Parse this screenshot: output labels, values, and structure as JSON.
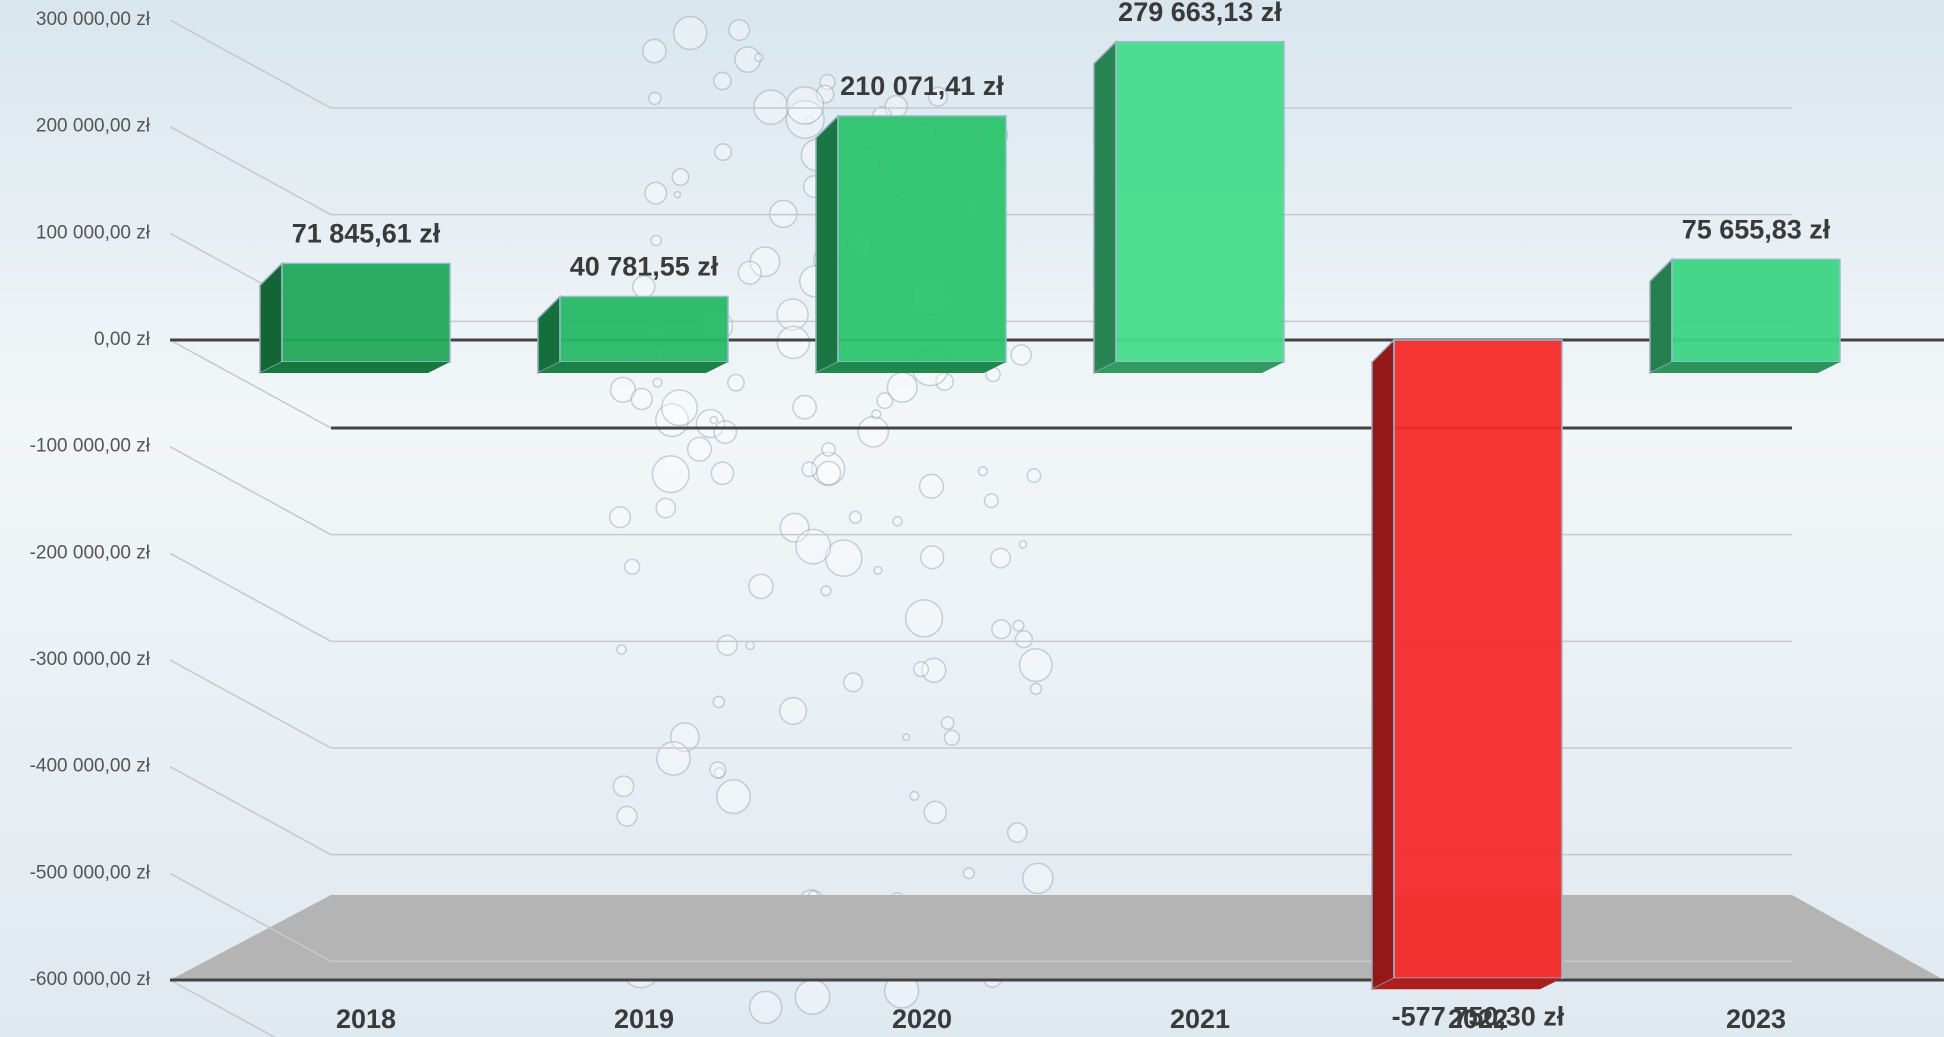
{
  "chart_data": {
    "type": "bar",
    "categories": [
      "2018",
      "2019",
      "2020",
      "2021",
      "2022",
      "2023"
    ],
    "values": [
      71845.61,
      40781.55,
      210071.41,
      279663.13,
      -577750.3,
      75655.83
    ],
    "value_labels": [
      "71 845,61 zł",
      "40 781,55 zł",
      "210 071,41 zł",
      "279 663,13 zł",
      "-577 750,30 zł",
      "75 655,83 zł"
    ],
    "colors": [
      "#22a85a",
      "#27b865",
      "#2cc46e",
      "#45dc8a",
      "#f52a2a",
      "#3cd484"
    ],
    "ylim": [
      -600000,
      300000
    ],
    "yticks": [
      {
        "value": 300000,
        "label": "300 000,00 zł"
      },
      {
        "value": 200000,
        "label": "200 000,00 zł"
      },
      {
        "value": 100000,
        "label": "100 000,00 zł"
      },
      {
        "value": 0,
        "label": "0,00 zł"
      },
      {
        "value": -100000,
        "label": "-100 000,00 zł"
      },
      {
        "value": -200000,
        "label": "-200 000,00 zł"
      },
      {
        "value": -300000,
        "label": "-300 000,00 zł"
      },
      {
        "value": -400000,
        "label": "-400 000,00 zł"
      },
      {
        "value": -500000,
        "label": "-500 000,00 zł"
      },
      {
        "value": -600000,
        "label": "-600 000,00 zł"
      }
    ],
    "grid": true
  }
}
